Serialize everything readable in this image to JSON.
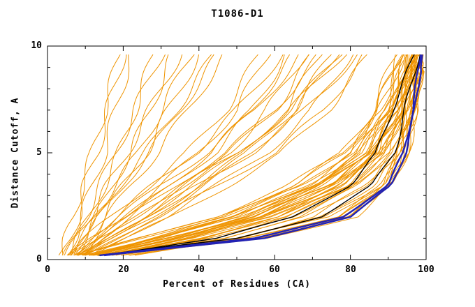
{
  "chart_data": {
    "type": "line",
    "title": "T1086-D1",
    "xlabel": "Percent of Residues (CA)",
    "ylabel": "Distance Cutoff, A",
    "xlim": [
      0,
      100
    ],
    "ylim": [
      0,
      10
    ],
    "x_ticks": [
      0,
      20,
      40,
      60,
      80,
      100
    ],
    "y_ticks": [
      10,
      5,
      0
    ],
    "grid": false,
    "legend": "none",
    "colors": {
      "models": "#ef9400",
      "reference": "#000000",
      "highlight": "#2222b4",
      "axis": "#000000"
    },
    "y_levels": [
      0.2,
      1,
      2,
      3.5,
      5,
      7,
      9.6
    ],
    "models": [
      [
        5,
        7,
        9,
        12,
        15,
        18,
        22
      ],
      [
        6,
        8,
        11,
        15,
        19,
        23,
        28
      ],
      [
        4,
        6,
        8,
        10,
        13,
        16,
        20
      ],
      [
        7,
        10,
        13,
        17,
        22,
        27,
        33
      ],
      [
        5,
        8,
        12,
        18,
        24,
        30,
        38
      ],
      [
        8,
        11,
        15,
        20,
        26,
        32,
        40
      ],
      [
        6,
        9,
        13,
        19,
        26,
        34,
        44
      ],
      [
        5,
        7,
        10,
        14,
        18,
        23,
        30
      ],
      [
        9,
        12,
        16,
        22,
        29,
        37,
        47
      ],
      [
        4,
        5,
        7,
        9,
        12,
        15,
        19
      ],
      [
        7,
        9,
        12,
        16,
        21,
        27,
        35
      ],
      [
        6,
        10,
        14,
        20,
        27,
        35,
        45
      ],
      [
        6,
        12,
        20,
        30,
        40,
        50,
        58
      ],
      [
        8,
        14,
        22,
        33,
        44,
        54,
        63
      ],
      [
        5,
        10,
        17,
        27,
        37,
        47,
        56
      ],
      [
        9,
        16,
        25,
        37,
        48,
        58,
        68
      ],
      [
        7,
        13,
        21,
        32,
        43,
        54,
        65
      ],
      [
        10,
        18,
        28,
        40,
        52,
        63,
        72
      ],
      [
        6,
        11,
        18,
        28,
        39,
        50,
        62
      ],
      [
        8,
        15,
        24,
        36,
        48,
        60,
        70
      ],
      [
        11,
        19,
        29,
        42,
        54,
        66,
        76
      ],
      [
        7,
        12,
        19,
        30,
        42,
        55,
        67
      ],
      [
        9,
        17,
        27,
        40,
        53,
        65,
        75
      ],
      [
        12,
        20,
        31,
        45,
        58,
        70,
        80
      ],
      [
        6,
        13,
        22,
        34,
        47,
        60,
        72
      ],
      [
        10,
        17,
        26,
        38,
        51,
        64,
        77
      ],
      [
        8,
        16,
        26,
        40,
        54,
        68,
        82
      ],
      [
        11,
        21,
        33,
        48,
        62,
        74,
        85
      ],
      [
        7,
        14,
        23,
        36,
        50,
        64,
        78
      ],
      [
        9,
        18,
        30,
        45,
        60,
        73,
        84
      ],
      [
        8,
        25,
        45,
        65,
        78,
        86,
        92
      ],
      [
        10,
        28,
        48,
        68,
        80,
        88,
        94
      ],
      [
        12,
        30,
        50,
        70,
        82,
        90,
        95
      ],
      [
        9,
        26,
        46,
        66,
        79,
        87,
        93
      ],
      [
        14,
        32,
        52,
        72,
        84,
        91,
        96
      ],
      [
        11,
        29,
        49,
        69,
        81,
        89,
        94
      ],
      [
        13,
        34,
        55,
        74,
        85,
        92,
        97
      ],
      [
        10,
        27,
        47,
        67,
        80,
        88,
        93
      ],
      [
        15,
        35,
        56,
        75,
        86,
        92,
        96
      ],
      [
        12,
        31,
        52,
        72,
        83,
        90,
        95
      ],
      [
        16,
        38,
        58,
        77,
        87,
        93,
        97
      ],
      [
        9,
        24,
        44,
        64,
        78,
        87,
        93
      ],
      [
        14,
        36,
        57,
        76,
        86,
        92,
        97
      ],
      [
        11,
        30,
        51,
        71,
        83,
        90,
        95
      ],
      [
        17,
        40,
        60,
        78,
        88,
        94,
        98
      ],
      [
        13,
        33,
        54,
        74,
        85,
        92,
        96
      ],
      [
        18,
        42,
        62,
        80,
        89,
        94,
        98
      ],
      [
        10,
        28,
        50,
        70,
        82,
        90,
        95
      ],
      [
        15,
        37,
        58,
        77,
        87,
        93,
        97
      ],
      [
        12,
        32,
        53,
        73,
        84,
        91,
        96
      ],
      [
        19,
        44,
        64,
        81,
        90,
        95,
        98
      ],
      [
        14,
        35,
        56,
        75,
        86,
        93,
        97
      ],
      [
        20,
        46,
        66,
        83,
        91,
        95,
        99
      ],
      [
        11,
        29,
        50,
        70,
        83,
        90,
        95
      ],
      [
        16,
        39,
        60,
        79,
        88,
        94,
        98
      ],
      [
        13,
        34,
        55,
        75,
        86,
        92,
        97
      ],
      [
        21,
        48,
        68,
        84,
        92,
        96,
        99
      ],
      [
        12,
        31,
        52,
        73,
        85,
        92,
        96
      ],
      [
        17,
        41,
        62,
        80,
        89,
        95,
        98
      ],
      [
        14,
        36,
        58,
        77,
        88,
        93,
        97
      ],
      [
        22,
        50,
        70,
        85,
        92,
        96,
        99
      ],
      [
        15,
        38,
        60,
        79,
        89,
        94,
        98
      ],
      [
        18,
        43,
        64,
        82,
        90,
        95,
        98
      ],
      [
        13,
        33,
        55,
        75,
        87,
        93,
        97
      ],
      [
        23,
        52,
        72,
        86,
        93,
        97,
        99
      ],
      [
        13,
        52,
        76,
        89,
        93,
        96,
        98
      ],
      [
        15,
        55,
        78,
        90,
        94,
        96.5,
        98.5
      ],
      [
        14,
        53,
        77,
        89,
        93.5,
        96,
        98
      ],
      [
        16,
        57,
        80,
        91,
        94.5,
        97,
        99
      ],
      [
        13,
        51,
        75,
        88,
        93,
        96,
        98
      ],
      [
        17,
        58,
        81,
        91,
        95,
        97,
        99
      ],
      [
        15,
        54,
        78,
        90,
        94,
        96.5,
        98.5
      ],
      [
        14,
        56,
        79,
        90,
        94,
        97,
        99
      ],
      [
        16,
        55,
        79,
        91,
        94.5,
        97,
        99
      ],
      [
        12,
        50,
        74,
        88,
        93,
        96,
        98.5
      ]
    ],
    "reference_curves": [
      [
        15,
        45,
        65,
        80,
        87,
        91,
        97
      ],
      [
        14,
        50,
        72,
        86,
        91.5,
        94.5,
        98
      ]
    ],
    "highlight_curves": [
      [
        14,
        55,
        78,
        90,
        94,
        96.5,
        98.5
      ],
      [
        15,
        57,
        80,
        91,
        94.5,
        97,
        99
      ]
    ]
  }
}
